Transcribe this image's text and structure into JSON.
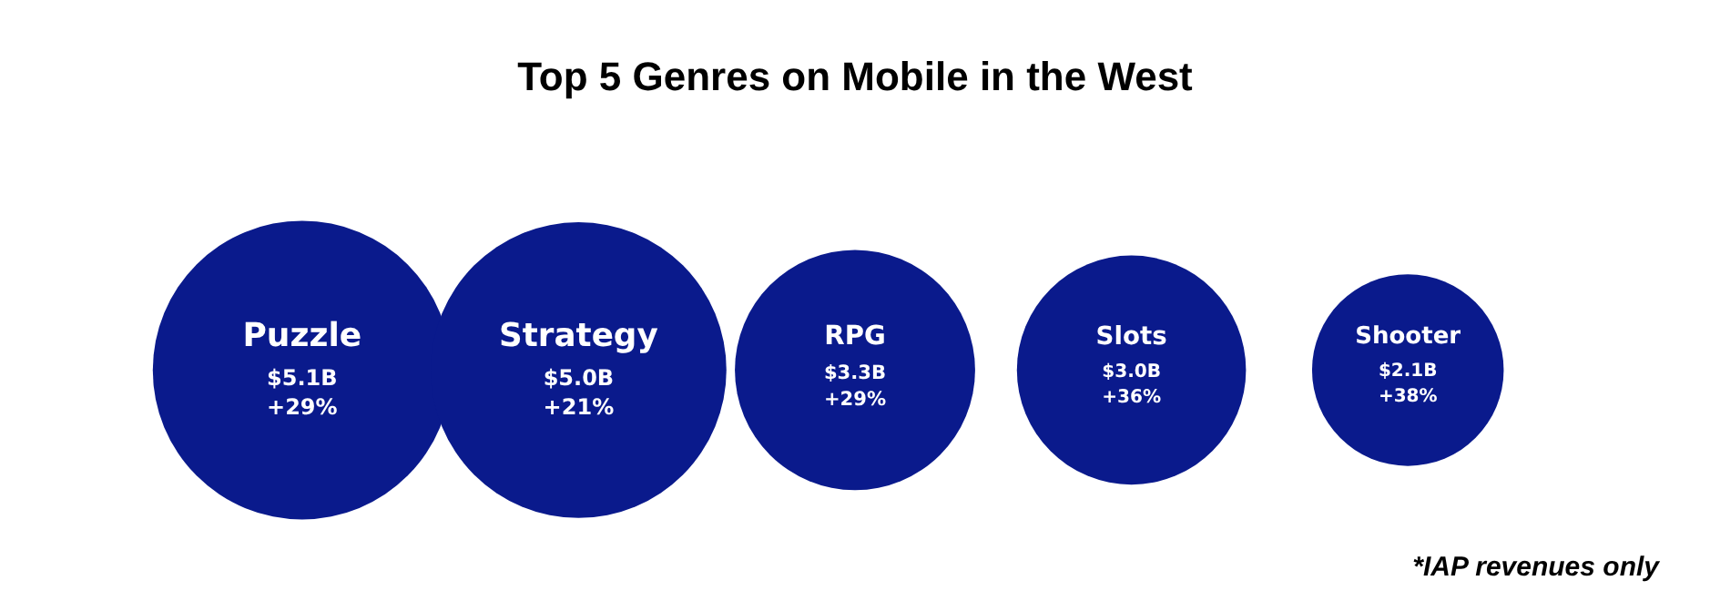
{
  "chart_data": {
    "type": "other",
    "title": "Top 5 Genres on Mobile in the West",
    "categories": [
      "Puzzle",
      "Strategy",
      "RPG",
      "Slots",
      "Shooter"
    ],
    "values": [
      5.1,
      5.0,
      3.3,
      3.0,
      2.1
    ],
    "value_labels": [
      "$5.1B",
      "$5.0B",
      "$3.3B",
      "$3.0B",
      "$2.1B"
    ],
    "color": "#0a1a8c",
    "annotations": [
      {
        "text": "+29%",
        "x": "Puzzle"
      },
      {
        "text": "+21%",
        "x": "Strategy"
      },
      {
        "text": "+29%",
        "x": "RPG"
      },
      {
        "text": "+36%",
        "x": "Slots"
      },
      {
        "text": "+38%",
        "x": "Shooter"
      },
      "*IAP revenues only"
    ],
    "legend": false
  }
}
